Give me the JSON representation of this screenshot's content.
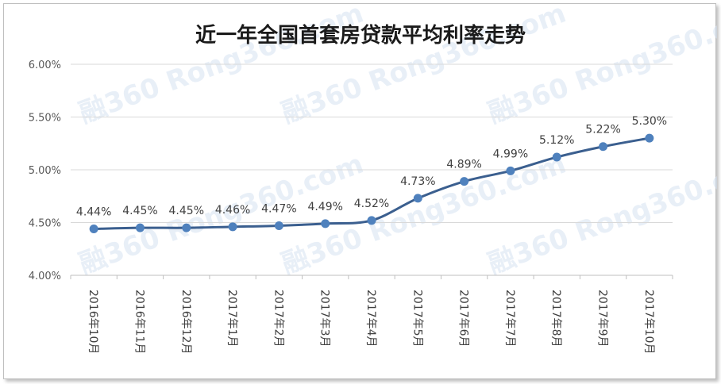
{
  "chart_data": {
    "type": "line",
    "title": "近一年全国首套房贷款平均利率走势",
    "xlabel": "",
    "ylabel": "",
    "categories": [
      "2016年10月",
      "2016年11月",
      "2016年12月",
      "2017年1月",
      "2017年2月",
      "2017年3月",
      "2017年4月",
      "2017年5月",
      "2017年6月",
      "2017年7月",
      "2017年8月",
      "2017年9月",
      "2017年10月"
    ],
    "series": [
      {
        "values": [
          4.44,
          4.45,
          4.45,
          4.46,
          4.47,
          4.49,
          4.52,
          4.73,
          4.89,
          4.99,
          5.12,
          5.22,
          5.3
        ]
      }
    ],
    "data_labels": [
      "4.44%",
      "4.45%",
      "4.45%",
      "4.46%",
      "4.47%",
      "4.49%",
      "4.52%",
      "4.73%",
      "4.89%",
      "4.99%",
      "5.12%",
      "5.22%",
      "5.30%"
    ],
    "ylim": [
      4.0,
      6.0
    ],
    "yticks": [
      4.0,
      4.5,
      5.0,
      5.5,
      6.0
    ],
    "ytick_labels": [
      "4.00%",
      "4.50%",
      "5.00%",
      "5.50%",
      "6.00%"
    ],
    "grid": true,
    "legend": "none",
    "line_color": "#3b5f8f",
    "marker_color": "#4f81bd",
    "watermark": "融360 Rong360.com"
  }
}
